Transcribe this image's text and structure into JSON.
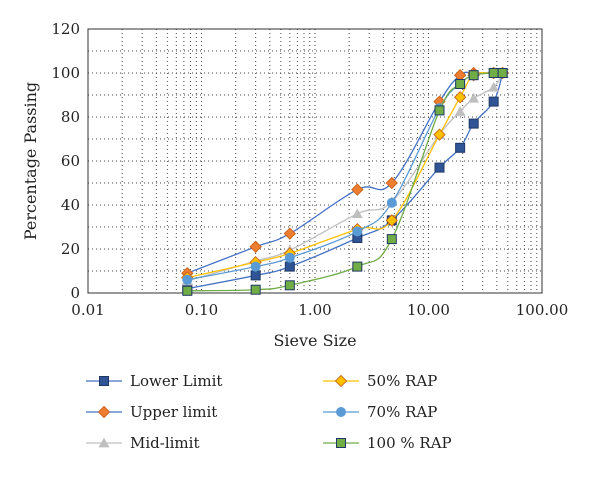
{
  "chart_data": {
    "type": "line",
    "xscale": "log",
    "title": "",
    "xlabel": "Sieve Size",
    "ylabel": "Percentage Passing",
    "xlim": [
      0.01,
      100
    ],
    "ylim": [
      0,
      120
    ],
    "x_ticks": [
      0.01,
      0.1,
      1,
      10,
      100
    ],
    "x_tick_labels": [
      "0.01",
      "0.10",
      "1.00",
      "10.00",
      "100.00"
    ],
    "y_ticks": [
      0,
      20,
      40,
      60,
      80,
      100,
      120
    ],
    "y_tick_labels": [
      "0",
      "20",
      "40",
      "60",
      "80",
      "100",
      "120"
    ],
    "grid": "dotted, major and minor",
    "legend_position": "bottom",
    "series": [
      {
        "name": "Lower Limit",
        "marker": "square",
        "line_color": "#4472c4",
        "marker_color": "#2f5597",
        "x": [
          0.075,
          0.3,
          0.6,
          2.36,
          4.75,
          12.5,
          19,
          25,
          37.5,
          45
        ],
        "y": [
          2,
          8,
          12,
          25,
          33,
          57,
          66,
          77,
          87,
          100
        ]
      },
      {
        "name": "Upper limit",
        "marker": "diamond",
        "line_color": "#4472c4",
        "marker_color": "#ed7d31",
        "x": [
          0.075,
          0.3,
          0.6,
          2.36,
          4.75,
          12.5,
          19,
          25,
          37.5,
          45
        ],
        "y": [
          9,
          21,
          27,
          47,
          50,
          87,
          99,
          100,
          100,
          100
        ]
      },
      {
        "name": "Mid-limit",
        "marker": "triangle",
        "line_color": "#bfbfbf",
        "marker_color": "#bfbfbf",
        "x": [
          0.075,
          0.3,
          0.6,
          2.36,
          4.75,
          12.5,
          19,
          25,
          37.5,
          45
        ],
        "y": [
          5.5,
          14.5,
          19.5,
          36,
          41.5,
          72,
          82.5,
          88.5,
          93.5,
          100
        ]
      },
      {
        "name": "50% RAP",
        "marker": "diamond",
        "line_color": "#ffc000",
        "marker_color": "#ffc000",
        "x": [
          0.075,
          0.3,
          0.6,
          2.36,
          4.75,
          12.5,
          19,
          25,
          37.5,
          45
        ],
        "y": [
          7,
          14,
          18,
          29,
          33,
          72,
          89,
          99,
          100,
          100
        ]
      },
      {
        "name": "70% RAP",
        "marker": "circle",
        "line_color": "#5b9bd5",
        "marker_color": "#5b9bd5",
        "x": [
          0.075,
          0.3,
          0.6,
          2.36,
          4.75,
          12.5,
          19,
          25,
          37.5,
          45
        ],
        "y": [
          6,
          12,
          16,
          28,
          41,
          84,
          95,
          99,
          100,
          100
        ]
      },
      {
        "name": "100 % RAP",
        "marker": "square",
        "line_color": "#70ad47",
        "marker_color": "#70ad47",
        "x": [
          0.075,
          0.3,
          0.6,
          2.36,
          4.75,
          12.5,
          19,
          25,
          37.5,
          45
        ],
        "y": [
          1,
          1.5,
          3.5,
          12,
          24.5,
          83,
          95,
          99,
          100,
          100
        ]
      }
    ]
  }
}
